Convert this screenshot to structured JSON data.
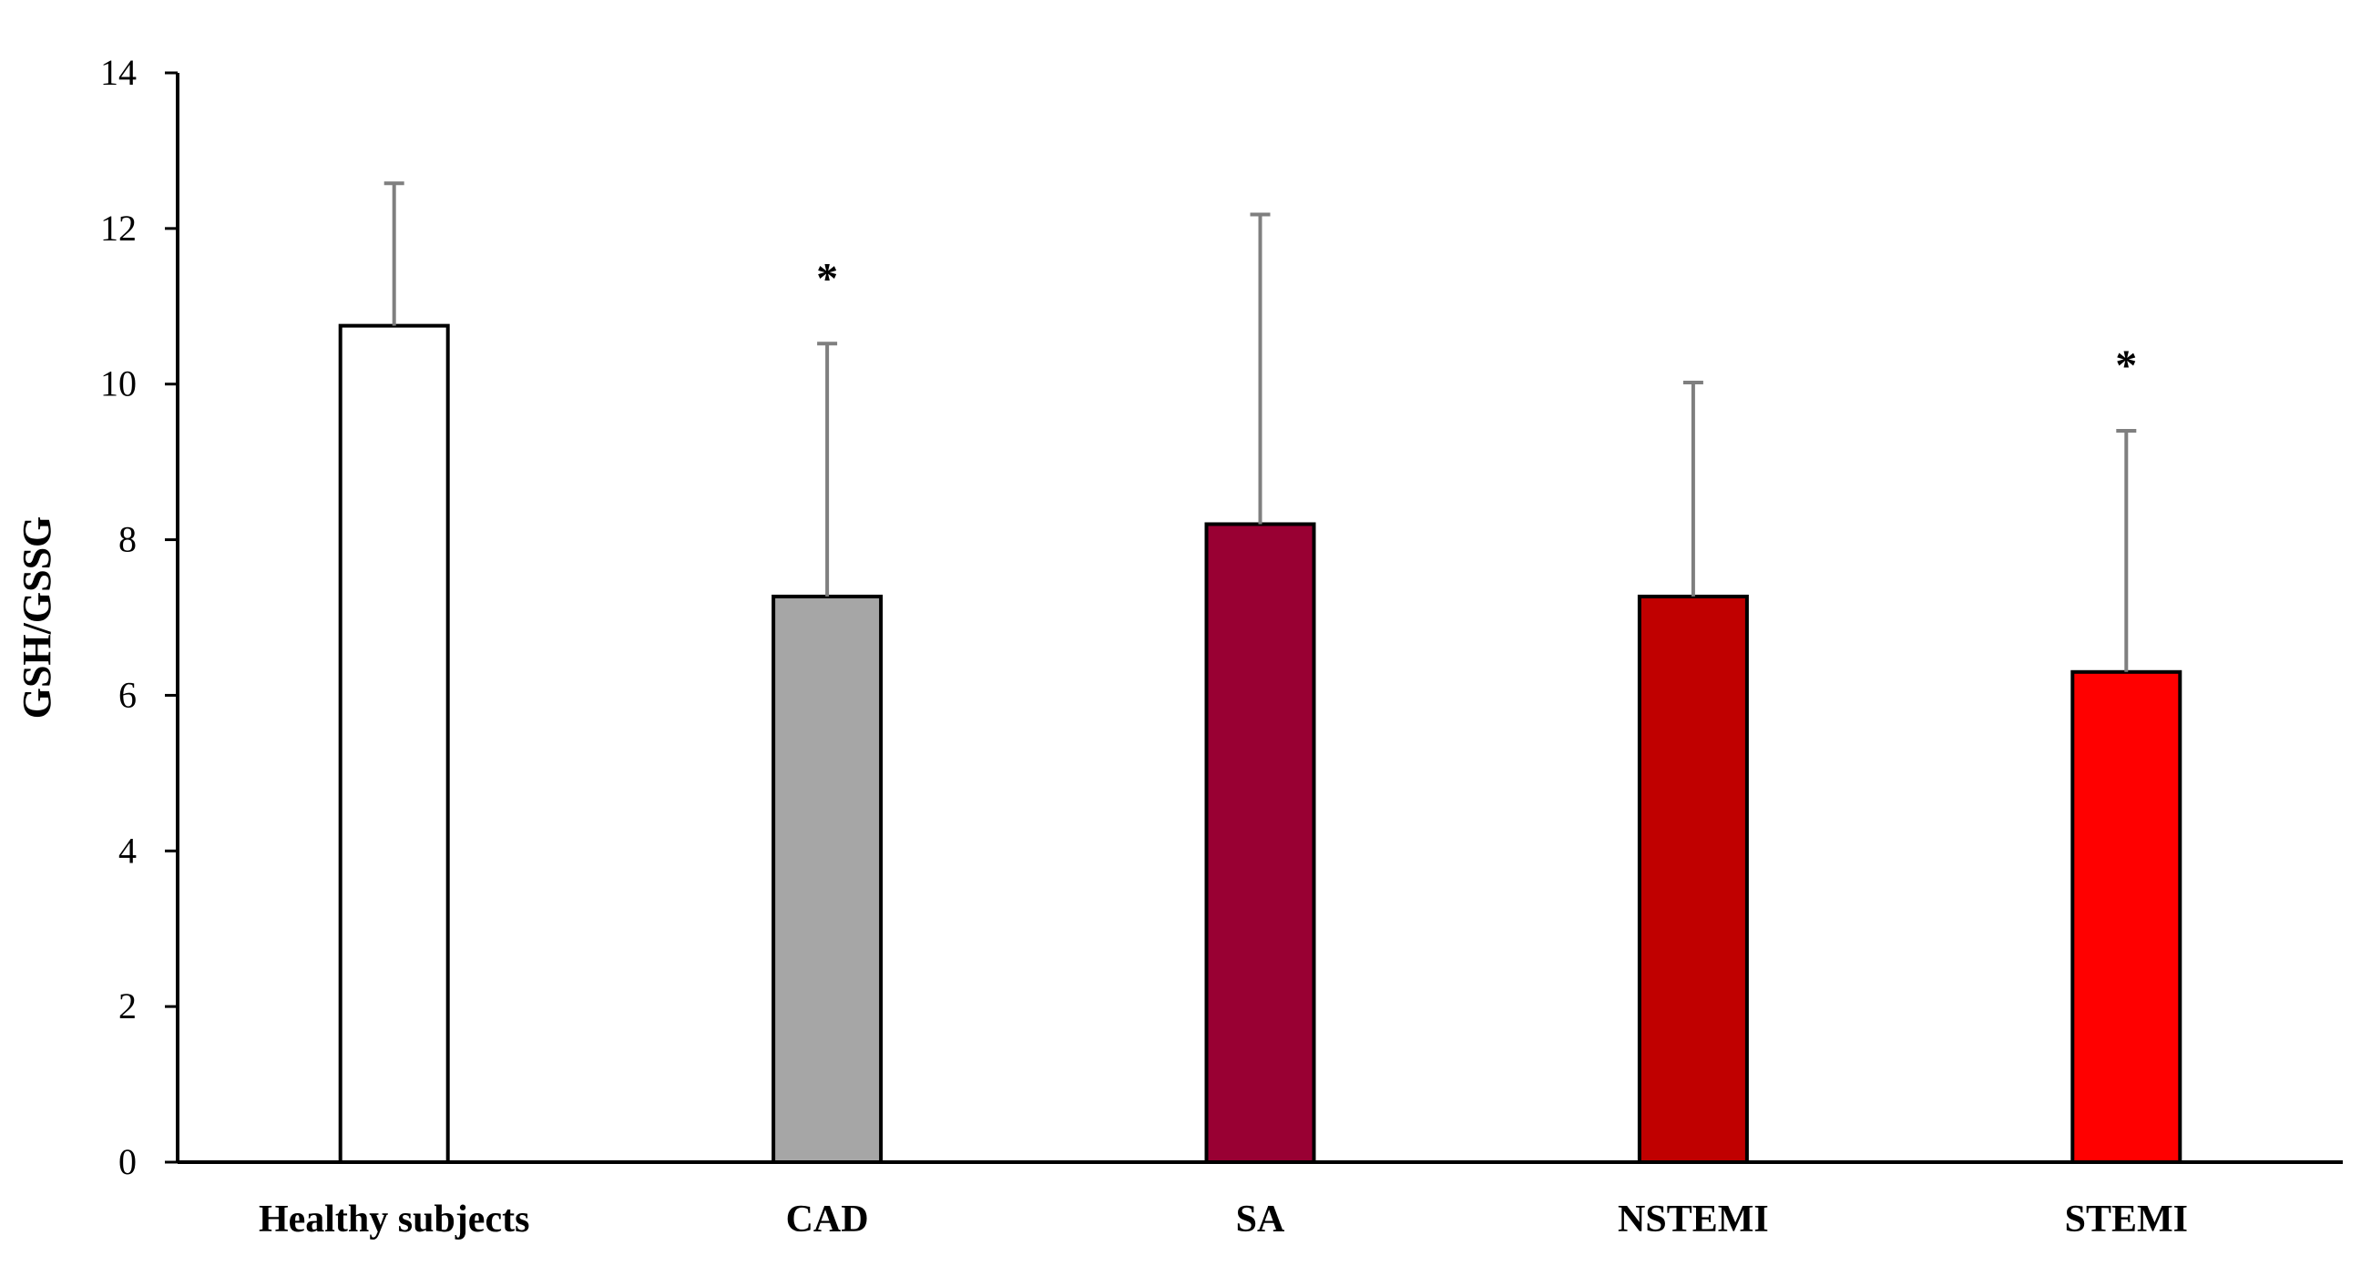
{
  "chart_data": {
    "type": "bar",
    "title": "",
    "xlabel": "",
    "ylabel": "GSH/GSSG",
    "ylim": [
      0,
      14
    ],
    "yticks": [
      0,
      2,
      4,
      6,
      8,
      10,
      12,
      14
    ],
    "categories": [
      "Healthy subjects",
      "CAD",
      "SA",
      "NSTEMI",
      "STEMI"
    ],
    "values": [
      10.75,
      7.27,
      8.2,
      7.27,
      6.3
    ],
    "error_upper": [
      1.83,
      3.25,
      3.98,
      2.75,
      3.1
    ],
    "significance": [
      "",
      "*",
      "",
      "",
      "*"
    ],
    "colors": [
      "#ffffff",
      "#a6a6a6",
      "#990033",
      "#c00000",
      "#ff0000"
    ],
    "error_bar_color": "#7f7f7f",
    "grid": false,
    "legend": "none"
  }
}
